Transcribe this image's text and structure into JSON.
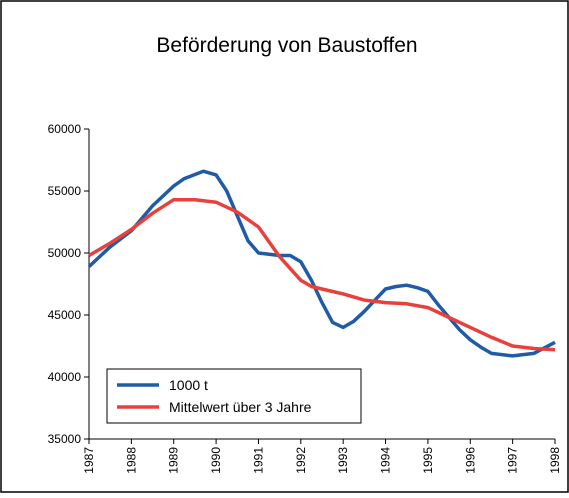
{
  "chart_data": {
    "type": "line",
    "title": "Beförderung von Baustoffen",
    "xlim": [
      1987,
      1998
    ],
    "xticks": [
      1987,
      1988,
      1989,
      1990,
      1991,
      1992,
      1993,
      1994,
      1995,
      1996,
      1997,
      1998
    ],
    "ylim": [
      35000,
      60000
    ],
    "yticks": [
      35000,
      40000,
      45000,
      50000,
      55000,
      60000
    ],
    "grid": false,
    "legend": "lower left",
    "series": [
      {
        "name": "1000 t",
        "color": "#1f5ba6",
        "x": [
          1987,
          1987.5,
          1988,
          1988.5,
          1989,
          1989.25,
          1989.7,
          1990,
          1990.25,
          1990.5,
          1990.75,
          1991,
          1991.5,
          1991.75,
          1992,
          1992.25,
          1992.5,
          1992.75,
          1993,
          1993.25,
          1993.5,
          1993.75,
          1994,
          1994.25,
          1994.5,
          1994.75,
          1995,
          1995.25,
          1995.5,
          1995.75,
          1996,
          1996.25,
          1996.5,
          1997,
          1997.5,
          1998
        ],
        "values": [
          48900,
          50500,
          51800,
          53800,
          55400,
          56000,
          56600,
          56300,
          55000,
          53000,
          51000,
          50000,
          49800,
          49800,
          49300,
          47800,
          46000,
          44400,
          44000,
          44500,
          45300,
          46200,
          47100,
          47300,
          47400,
          47200,
          46900,
          45800,
          44800,
          43800,
          43000,
          42400,
          41900,
          41700,
          41900,
          42800
        ]
      },
      {
        "name": "Mittelwert über 3 Jahre",
        "color": "#e8413c",
        "x": [
          1987,
          1987.5,
          1988,
          1988.5,
          1989,
          1989.5,
          1990,
          1990.5,
          1991,
          1991.5,
          1992,
          1992.25,
          1992.5,
          1993,
          1993.5,
          1994,
          1994.5,
          1995,
          1995.5,
          1996,
          1996.5,
          1997,
          1997.5,
          1998
        ],
        "values": [
          49800,
          50800,
          51900,
          53200,
          54300,
          54300,
          54100,
          53300,
          52100,
          49700,
          47800,
          47300,
          47100,
          46700,
          46200,
          46000,
          45900,
          45600,
          44800,
          44000,
          43200,
          42500,
          42300,
          42200
        ]
      }
    ]
  }
}
